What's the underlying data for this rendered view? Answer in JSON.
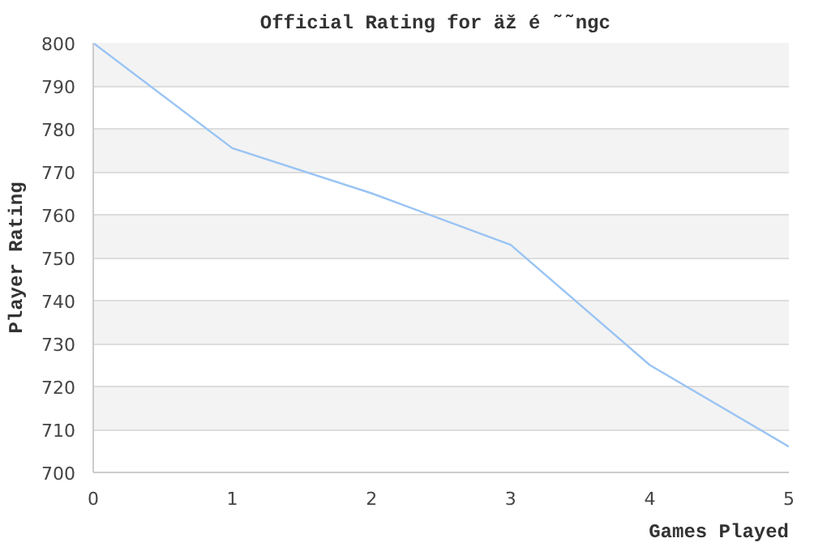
{
  "chart_data": {
    "type": "line",
    "title": "Official Rating for äž é  ˜˜ngc",
    "xlabel": "Games Played",
    "ylabel": "Player Rating",
    "x": [
      0,
      1,
      2,
      3,
      4,
      5
    ],
    "series": [
      {
        "color": "#99c4f4",
        "values": [
          800,
          775.5,
          765,
          753,
          725,
          706
        ]
      }
    ],
    "xlim": [
      0,
      5
    ],
    "xticks": [
      0,
      1,
      2,
      3,
      4,
      5
    ],
    "ylim": [
      700,
      800
    ],
    "yticks": [
      700,
      710,
      720,
      730,
      740,
      750,
      760,
      770,
      780,
      790,
      800
    ],
    "grid": "y",
    "marker": "none",
    "line_style": "solid"
  }
}
